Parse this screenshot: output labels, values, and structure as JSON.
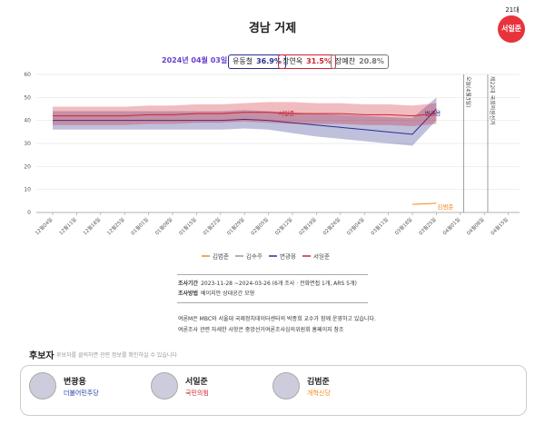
{
  "page": {
    "title": "경남 거제",
    "term": "21대",
    "incumbent": "서일준",
    "date": "2024년 04월 03일",
    "polls": [
      {
        "name": "유동철",
        "value": "36.9%",
        "color": "#2a2f8a"
      },
      {
        "name": "장연옥",
        "value": "31.5%",
        "color": "#d0222f"
      },
      {
        "name": "장예찬",
        "value": "20.8%",
        "color": "#777777"
      }
    ],
    "notes": [
      {
        "label": "조사기간",
        "text": "2023-11-28 ~2024-03-26 (6개 조사 · 전화면접 1개, ARS 5개)"
      },
      {
        "label": "조사방법",
        "text": "베이지안 상대공간 모형"
      }
    ],
    "info": [
      "여론M은 MBC와 서울대 국제정치데이터센터의 박종희 교수가 함께 운영하고 있습니다.",
      "여론조사 관련 자세한 사항은 중앙선거여론조사심의위원회 홈페이지 참조"
    ],
    "candidates_title": "후보자",
    "candidates_hint": "후보자를 클릭하면 관련 정보를 확인하실 수 있습니다",
    "candidates": [
      {
        "name": "변광용",
        "party": "더불어민주당",
        "color": "#1f3aa8"
      },
      {
        "name": "서일준",
        "party": "국민의힘",
        "color": "#d0222f"
      },
      {
        "name": "김범준",
        "party": "개혁신당",
        "color": "#f08a1c"
      }
    ]
  },
  "chart_data": {
    "type": "line",
    "categories": [
      "12월04일",
      "12월11일",
      "12월18일",
      "12월25일",
      "01월01일",
      "01월08일",
      "01월15일",
      "01월22일",
      "01월29일",
      "02월05일",
      "02월12일",
      "02월19일",
      "02월26일",
      "03월04일",
      "03월11일",
      "03월18일",
      "03월25일",
      "04월01일",
      "04월08일",
      "04월15일"
    ],
    "ylim": [
      0,
      60
    ],
    "yticks": [
      0,
      10,
      20,
      30,
      40,
      50,
      60
    ],
    "markers": [
      {
        "x": "04월03일",
        "label": "오늘(4월3일)"
      },
      {
        "x": "04월10일",
        "label": "제22대 국회의원선거"
      }
    ],
    "series": [
      {
        "name": "김범준",
        "color": "#f08a1c",
        "values": [
          null,
          null,
          null,
          null,
          null,
          null,
          null,
          null,
          null,
          null,
          null,
          null,
          null,
          null,
          null,
          3.5,
          4,
          null,
          null,
          null
        ],
        "line_label": "김범준"
      },
      {
        "name": "김수주",
        "color": "#999999",
        "values": [
          null,
          null,
          null,
          null,
          null,
          null,
          null,
          null,
          null,
          null,
          null,
          null,
          null,
          null,
          null,
          null,
          null,
          null,
          null,
          null
        ]
      },
      {
        "name": "변광용",
        "color": "#2a2f8a",
        "values": [
          40,
          40,
          40,
          40,
          40,
          40,
          40,
          40,
          40.5,
          40,
          39,
          38,
          37,
          36,
          35,
          34,
          45,
          null,
          null,
          null
        ],
        "upper": [
          44,
          44,
          44,
          44,
          44,
          44,
          44,
          44,
          44.5,
          44,
          43.5,
          43,
          42.5,
          42,
          41.5,
          41,
          50,
          null,
          null,
          null
        ],
        "lower": [
          36,
          36,
          36,
          36,
          36,
          36,
          36,
          36,
          36.5,
          36,
          34.5,
          33,
          32,
          31,
          30,
          29,
          40,
          null,
          null,
          null
        ],
        "line_label": "변광용"
      },
      {
        "name": "서일준",
        "color": "#d0222f",
        "values": [
          42,
          42,
          42,
          42,
          42.5,
          42.5,
          43,
          43,
          43.5,
          43.5,
          43,
          43,
          43,
          42.5,
          42.5,
          42,
          43,
          null,
          null,
          null
        ],
        "upper": [
          46,
          46,
          46,
          46,
          46.5,
          46.5,
          47,
          47,
          47.5,
          48,
          48,
          47.5,
          47.5,
          47,
          47,
          46.5,
          47.5,
          null,
          null,
          null
        ],
        "lower": [
          38,
          38,
          38,
          38,
          38.5,
          38.5,
          39,
          39,
          39.5,
          39,
          38.5,
          38.5,
          38.5,
          38,
          38,
          37.5,
          38.5,
          null,
          null,
          null
        ],
        "line_label": "서일준"
      }
    ]
  }
}
